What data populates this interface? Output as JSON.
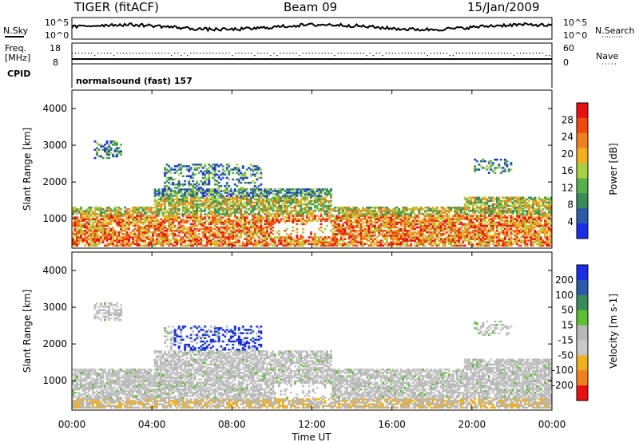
{
  "header": {
    "title": "TIGER (fitACF)",
    "beam": "Beam 09",
    "date": "15/Jan/2009"
  },
  "top_panel": {
    "left_label": "N.Sky",
    "left_ticks": [
      "10^5",
      "10^0"
    ],
    "right_label": "N.Search",
    "right_ticks": [
      "10^5",
      "10^0"
    ]
  },
  "freq_panel": {
    "left_label_line1": "Freq.",
    "left_label_line2": "[MHz]",
    "left_ticks": [
      "18",
      "8"
    ],
    "right_label": "Nave",
    "right_ticks": [
      "60",
      "0"
    ]
  },
  "cpid_panel": {
    "label": "CPID",
    "text": "normalsound (fast) 157"
  },
  "colors": {
    "power_scale": [
      "#1a2ee8",
      "#2a5aa8",
      "#3a8a5a",
      "#55b04a",
      "#a8d040",
      "#f0b020",
      "#f08020",
      "#f04a10",
      "#e81010"
    ],
    "velocity_scale": [
      "#1a2ee8",
      "#2a5aa8",
      "#3a8a5a",
      "#5cc030",
      "#b8b8b8",
      "#c8c8c8",
      "#f0b020",
      "#f08020",
      "#e81010"
    ]
  },
  "chart_data": [
    {
      "type": "heatmap",
      "quantity": "power",
      "ylabel": "Slant Range [km]",
      "yticks": [
        "1000",
        "2000",
        "3000",
        "4000"
      ],
      "ylim": [
        200,
        4500
      ],
      "xlim_hours": [
        0,
        24
      ],
      "colorbar_label": "Power [dB]",
      "colorbar_ticks": [
        "4",
        "8",
        "12",
        "16",
        "20",
        "24",
        "28"
      ],
      "colorbar_range": [
        0,
        32
      ]
    },
    {
      "type": "heatmap",
      "quantity": "velocity",
      "ylabel": "Slant Range [km]",
      "yticks": [
        "1000",
        "2000",
        "3000",
        "4000"
      ],
      "ylim": [
        200,
        4500
      ],
      "xlim_hours": [
        0,
        24
      ],
      "colorbar_label": "Velocity [m s-1]",
      "colorbar_ticks": [
        "200",
        "100",
        "50",
        "15",
        "-15",
        "-50",
        "-100",
        "-200"
      ]
    }
  ],
  "x_axis": {
    "ticks": [
      "00:00",
      "04:00",
      "08:00",
      "12:00",
      "16:00",
      "20:00",
      "00:00"
    ],
    "label": "Time UT"
  }
}
